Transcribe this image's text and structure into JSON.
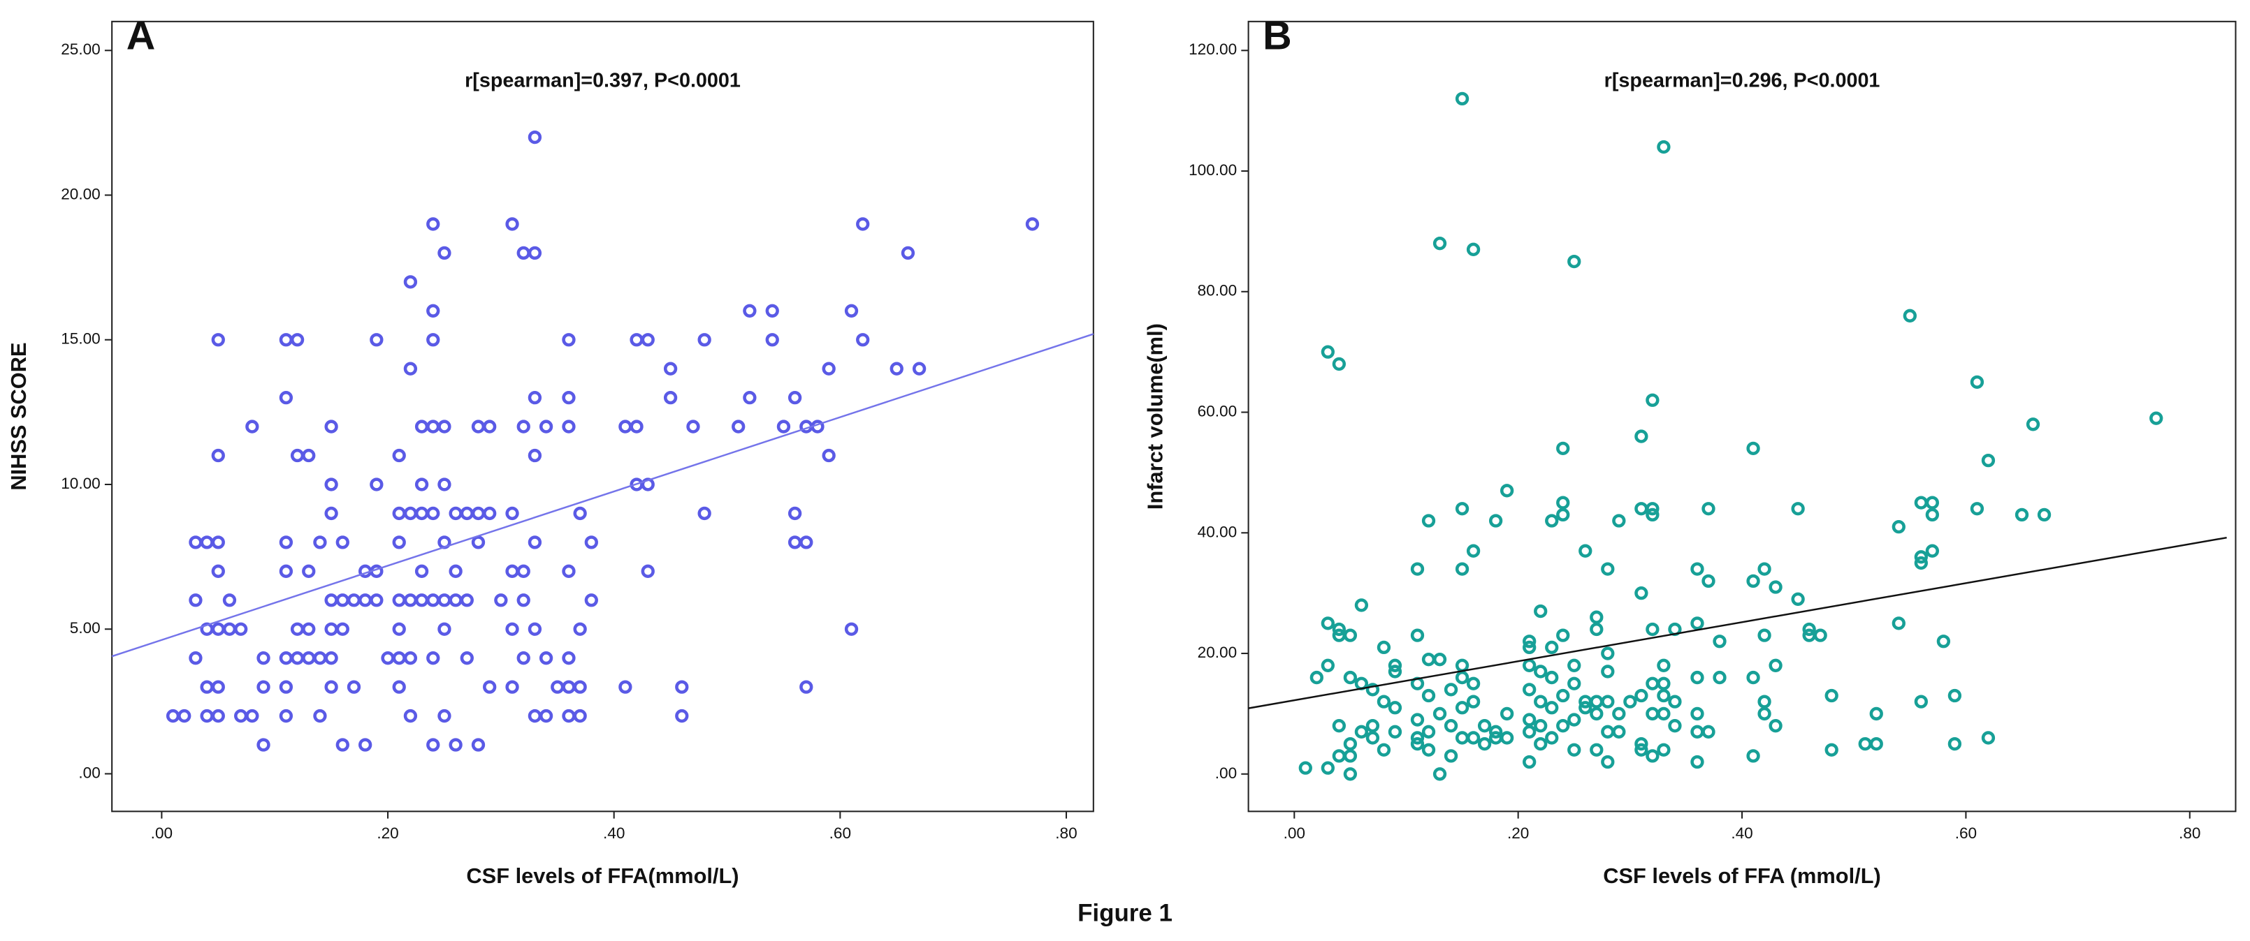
{
  "caption": "Figure 1",
  "chart_data": [
    {
      "type": "scatter",
      "panel": "A",
      "annotation": "r[spearman]=0.397, P<0.0001",
      "xlabel": "CSF levels of FFA(mmol/L)",
      "ylabel": "NIHSS SCORE",
      "color": "#5a5ae6",
      "x": [
        0.01,
        0.02,
        0.03,
        0.03,
        0.03,
        0.04,
        0.04,
        0.04,
        0.04,
        0.05,
        0.05,
        0.05,
        0.05,
        0.05,
        0.05,
        0.05,
        0.06,
        0.06,
        0.07,
        0.07,
        0.08,
        0.08,
        0.09,
        0.09,
        0.09,
        0.11,
        0.11,
        0.11,
        0.11,
        0.11,
        0.11,
        0.11,
        0.12,
        0.12,
        0.12,
        0.12,
        0.13,
        0.13,
        0.13,
        0.13,
        0.14,
        0.14,
        0.14,
        0.15,
        0.15,
        0.15,
        0.15,
        0.15,
        0.15,
        0.15,
        0.16,
        0.16,
        0.16,
        0.16,
        0.17,
        0.17,
        0.18,
        0.18,
        0.18,
        0.19,
        0.19,
        0.19,
        0.19,
        0.2,
        0.21,
        0.21,
        0.21,
        0.21,
        0.21,
        0.21,
        0.21,
        0.22,
        0.22,
        0.22,
        0.22,
        0.22,
        0.22,
        0.23,
        0.23,
        0.23,
        0.23,
        0.23,
        0.24,
        0.24,
        0.24,
        0.24,
        0.24,
        0.24,
        0.24,
        0.24,
        0.25,
        0.25,
        0.25,
        0.25,
        0.25,
        0.25,
        0.25,
        0.26,
        0.26,
        0.26,
        0.26,
        0.27,
        0.27,
        0.27,
        0.28,
        0.28,
        0.28,
        0.28,
        0.29,
        0.29,
        0.29,
        0.3,
        0.31,
        0.31,
        0.31,
        0.31,
        0.31,
        0.32,
        0.32,
        0.32,
        0.32,
        0.32,
        0.33,
        0.33,
        0.33,
        0.33,
        0.33,
        0.33,
        0.33,
        0.34,
        0.34,
        0.34,
        0.35,
        0.36,
        0.36,
        0.36,
        0.36,
        0.36,
        0.36,
        0.36,
        0.37,
        0.37,
        0.37,
        0.37,
        0.38,
        0.38,
        0.41,
        0.41,
        0.42,
        0.42,
        0.42,
        0.43,
        0.43,
        0.43,
        0.45,
        0.45,
        0.46,
        0.46,
        0.47,
        0.48,
        0.48,
        0.51,
        0.52,
        0.52,
        0.54,
        0.54,
        0.55,
        0.56,
        0.56,
        0.56,
        0.57,
        0.57,
        0.57,
        0.58,
        0.59,
        0.59,
        0.61,
        0.61,
        0.62,
        0.62,
        0.65,
        0.66,
        0.67,
        0.77
      ],
      "values": [
        2,
        2,
        8,
        6,
        4,
        8,
        5,
        3,
        2,
        15,
        11,
        8,
        7,
        5,
        3,
        2,
        6,
        5,
        5,
        2,
        12,
        2,
        4,
        1,
        3,
        15,
        13,
        8,
        7,
        4,
        3,
        2,
        15,
        11,
        5,
        4,
        11,
        7,
        5,
        4,
        8,
        4,
        2,
        12,
        10,
        9,
        6,
        5,
        4,
        3,
        8,
        6,
        5,
        1,
        6,
        3,
        7,
        6,
        1,
        15,
        10,
        7,
        6,
        4,
        11,
        9,
        8,
        6,
        5,
        4,
        3,
        17,
        14,
        9,
        6,
        4,
        2,
        12,
        10,
        9,
        7,
        6,
        19,
        16,
        15,
        12,
        9,
        6,
        4,
        1,
        18,
        12,
        10,
        8,
        6,
        5,
        2,
        9,
        7,
        6,
        1,
        9,
        6,
        4,
        12,
        9,
        8,
        1,
        12,
        9,
        3,
        6,
        19,
        9,
        7,
        5,
        3,
        18,
        12,
        7,
        6,
        4,
        22,
        18,
        13,
        11,
        8,
        5,
        2,
        12,
        4,
        2,
        3,
        15,
        13,
        12,
        7,
        4,
        3,
        2,
        9,
        5,
        3,
        2,
        8,
        6,
        12,
        3,
        15,
        12,
        10,
        15,
        10,
        7,
        14,
        13,
        3,
        2,
        12,
        15,
        9,
        12,
        16,
        13,
        16,
        15,
        12,
        13,
        9,
        8,
        12,
        8,
        3,
        12,
        14,
        11,
        16,
        5,
        19,
        15,
        14,
        18,
        14,
        19
      ],
      "trendline": {
        "color": "#7474ea",
        "x": [
          -0.044,
          0.824
        ],
        "y": [
          4.06,
          15.2
        ]
      },
      "xlim": [
        -0.044,
        0.824
      ],
      "ylim": [
        -1.3,
        26
      ],
      "xticks": [
        {
          "value": 0,
          "label": ".00"
        },
        {
          "value": 0.2,
          "label": ".20"
        },
        {
          "value": 0.4,
          "label": ".40"
        },
        {
          "value": 0.6,
          "label": ".60"
        },
        {
          "value": 0.8,
          "label": ".80"
        }
      ],
      "yticks": [
        {
          "value": 0,
          "label": ".00"
        },
        {
          "value": 5,
          "label": "5.00"
        },
        {
          "value": 10,
          "label": "10.00"
        },
        {
          "value": 15,
          "label": "15.00"
        },
        {
          "value": 20,
          "label": "20.00"
        },
        {
          "value": 25,
          "label": "25.00"
        }
      ]
    },
    {
      "type": "scatter",
      "panel": "B",
      "annotation": "r[spearman]=0.296, P<0.0001",
      "xlabel": "CSF levels of FFA (mmol/L)",
      "ylabel": "Infarct volume(ml)",
      "color": "#17a097",
      "x": [
        0.01,
        0.02,
        0.03,
        0.03,
        0.03,
        0.03,
        0.04,
        0.04,
        0.04,
        0.04,
        0.04,
        0.05,
        0.05,
        0.05,
        0.05,
        0.05,
        0.06,
        0.06,
        0.06,
        0.07,
        0.07,
        0.07,
        0.08,
        0.08,
        0.08,
        0.09,
        0.09,
        0.09,
        0.09,
        0.11,
        0.11,
        0.11,
        0.11,
        0.11,
        0.11,
        0.12,
        0.12,
        0.12,
        0.12,
        0.12,
        0.13,
        0.13,
        0.13,
        0.13,
        0.14,
        0.14,
        0.14,
        0.15,
        0.15,
        0.15,
        0.15,
        0.15,
        0.15,
        0.15,
        0.16,
        0.16,
        0.16,
        0.16,
        0.16,
        0.17,
        0.17,
        0.18,
        0.18,
        0.18,
        0.19,
        0.19,
        0.19,
        0.21,
        0.21,
        0.21,
        0.21,
        0.21,
        0.21,
        0.21,
        0.22,
        0.22,
        0.22,
        0.22,
        0.22,
        0.23,
        0.23,
        0.23,
        0.23,
        0.23,
        0.24,
        0.24,
        0.24,
        0.24,
        0.24,
        0.24,
        0.25,
        0.25,
        0.25,
        0.25,
        0.25,
        0.26,
        0.26,
        0.26,
        0.27,
        0.27,
        0.27,
        0.27,
        0.27,
        0.28,
        0.28,
        0.28,
        0.28,
        0.28,
        0.28,
        0.29,
        0.29,
        0.29,
        0.3,
        0.31,
        0.31,
        0.31,
        0.31,
        0.31,
        0.31,
        0.32,
        0.32,
        0.32,
        0.32,
        0.32,
        0.32,
        0.32,
        0.33,
        0.33,
        0.33,
        0.33,
        0.33,
        0.33,
        0.34,
        0.34,
        0.34,
        0.36,
        0.36,
        0.36,
        0.36,
        0.36,
        0.36,
        0.37,
        0.37,
        0.37,
        0.38,
        0.38,
        0.41,
        0.41,
        0.41,
        0.41,
        0.42,
        0.42,
        0.42,
        0.42,
        0.43,
        0.43,
        0.43,
        0.45,
        0.45,
        0.46,
        0.46,
        0.47,
        0.48,
        0.48,
        0.51,
        0.52,
        0.52,
        0.54,
        0.54,
        0.55,
        0.56,
        0.56,
        0.56,
        0.56,
        0.57,
        0.57,
        0.57,
        0.58,
        0.59,
        0.59,
        0.61,
        0.61,
        0.62,
        0.62,
        0.65,
        0.66,
        0.67,
        0.77
      ],
      "values": [
        1,
        16,
        25,
        18,
        1,
        70,
        68,
        24,
        23,
        8,
        3,
        23,
        16,
        5,
        3,
        0,
        15,
        7,
        28,
        14,
        8,
        6,
        21,
        12,
        4,
        18,
        17,
        11,
        7,
        34,
        23,
        15,
        9,
        6,
        5,
        42,
        19,
        13,
        7,
        4,
        88,
        19,
        10,
        0,
        14,
        8,
        3,
        112,
        44,
        34,
        18,
        16,
        11,
        6,
        87,
        37,
        15,
        12,
        6,
        8,
        5,
        42,
        7,
        6,
        47,
        10,
        6,
        22,
        21,
        18,
        14,
        9,
        7,
        2,
        27,
        17,
        12,
        8,
        5,
        42,
        21,
        16,
        11,
        6,
        54,
        45,
        43,
        23,
        13,
        8,
        85,
        18,
        15,
        9,
        4,
        37,
        12,
        11,
        26,
        24,
        12,
        10,
        4,
        34,
        20,
        17,
        12,
        7,
        2,
        42,
        10,
        7,
        12,
        56,
        44,
        30,
        13,
        5,
        4,
        62,
        44,
        43,
        24,
        15,
        10,
        3,
        104,
        18,
        15,
        13,
        10,
        4,
        24,
        12,
        8,
        34,
        25,
        16,
        10,
        7,
        2,
        44,
        32,
        7,
        22,
        16,
        54,
        32,
        16,
        3,
        34,
        23,
        12,
        10,
        31,
        18,
        8,
        44,
        29,
        24,
        23,
        23,
        13,
        4,
        5,
        10,
        5,
        41,
        25,
        76,
        45,
        36,
        35,
        12,
        45,
        43,
        37,
        22,
        13,
        5,
        65,
        44,
        52,
        6,
        43,
        58,
        43,
        59
      ],
      "trendline": {
        "color": "#111111",
        "x": [
          -0.041,
          0.833
        ],
        "y": [
          10.9,
          39.2
        ]
      },
      "xlim": [
        -0.041,
        0.841
      ],
      "ylim": [
        -6.2,
        124.8
      ],
      "xticks": [
        {
          "value": 0,
          "label": ".00"
        },
        {
          "value": 0.2,
          "label": ".20"
        },
        {
          "value": 0.4,
          "label": ".40"
        },
        {
          "value": 0.6,
          "label": ".60"
        },
        {
          "value": 0.8,
          "label": ".80"
        }
      ],
      "yticks": [
        {
          "value": 0,
          "label": ".00"
        },
        {
          "value": 20,
          "label": "20.00"
        },
        {
          "value": 40,
          "label": "40.00"
        },
        {
          "value": 60,
          "label": "60.00"
        },
        {
          "value": 80,
          "label": "80.00"
        },
        {
          "value": 100,
          "label": "100.00"
        },
        {
          "value": 120,
          "label": "120.00"
        }
      ]
    }
  ]
}
